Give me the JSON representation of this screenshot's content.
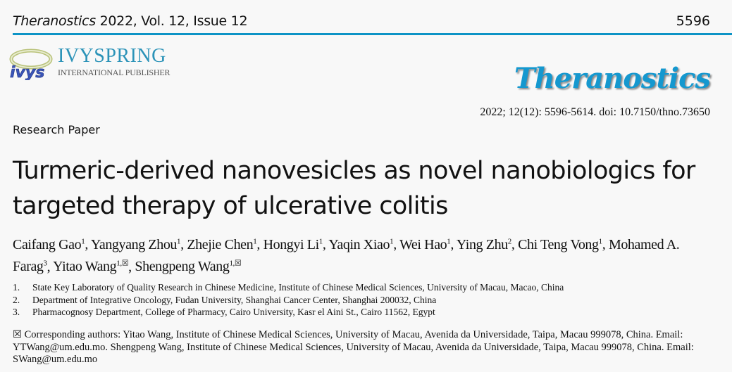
{
  "header": {
    "journal": "Theranostics",
    "issue": "2022, Vol. 12, Issue 12",
    "page": "5596",
    "rule_color": "#0d94c6"
  },
  "publisher": {
    "logo_text": "IVYSPRING",
    "logo_subtext": "INTERNATIONAL PUBLISHER",
    "logo_badge": "ivys"
  },
  "journal_logo": {
    "text": "Theranostics",
    "color": "#1598cf"
  },
  "citation": "2022; 12(12): 5596-5614. doi: 10.7150/thno.73650",
  "article_type": "Research Paper",
  "title": "Turmeric-derived nanovesicles as novel nanobiologics for targeted therapy of ulcerative colitis",
  "authors": [
    {
      "name": "Caifang Gao",
      "sup": "1"
    },
    {
      "name": "Yangyang Zhou",
      "sup": "1"
    },
    {
      "name": "Zhejie Chen",
      "sup": "1"
    },
    {
      "name": "Hongyi Li",
      "sup": "1"
    },
    {
      "name": "Yaqin Xiao",
      "sup": "1"
    },
    {
      "name": "Wei Hao",
      "sup": "1"
    },
    {
      "name": "Ying Zhu",
      "sup": "2"
    },
    {
      "name": "Chi Teng Vong",
      "sup": "1"
    },
    {
      "name": "Mohamed A. Farag",
      "sup": "3"
    },
    {
      "name": "Yitao Wang",
      "sup": "1,☒"
    },
    {
      "name": "Shengpeng Wang",
      "sup": "1,☒"
    }
  ],
  "affiliations": [
    {
      "num": "1.",
      "text": "State Key Laboratory of Quality Research in Chinese Medicine, Institute of Chinese Medical Sciences, University of Macau, Macao, China"
    },
    {
      "num": "2.",
      "text": "Department of Integrative Oncology, Fudan University, Shanghai Cancer Center, Shanghai 200032, China"
    },
    {
      "num": "3.",
      "text": "Pharmacognosy Department, College of Pharmacy, Cairo University, Kasr el Aini St., Cairo 11562, Egypt"
    }
  ],
  "correspondence": "☒ Corresponding authors: Yitao Wang, Institute of Chinese Medical Sciences, University of Macau, Avenida da Universidade, Taipa, Macau 999078, China. Email: YTWang@um.edu.mo. Shengpeng Wang, Institute of Chinese Medical Sciences, University of Macau, Avenida da Universidade, Taipa, Macau 999078, China. Email: SWang@um.edu.mo"
}
